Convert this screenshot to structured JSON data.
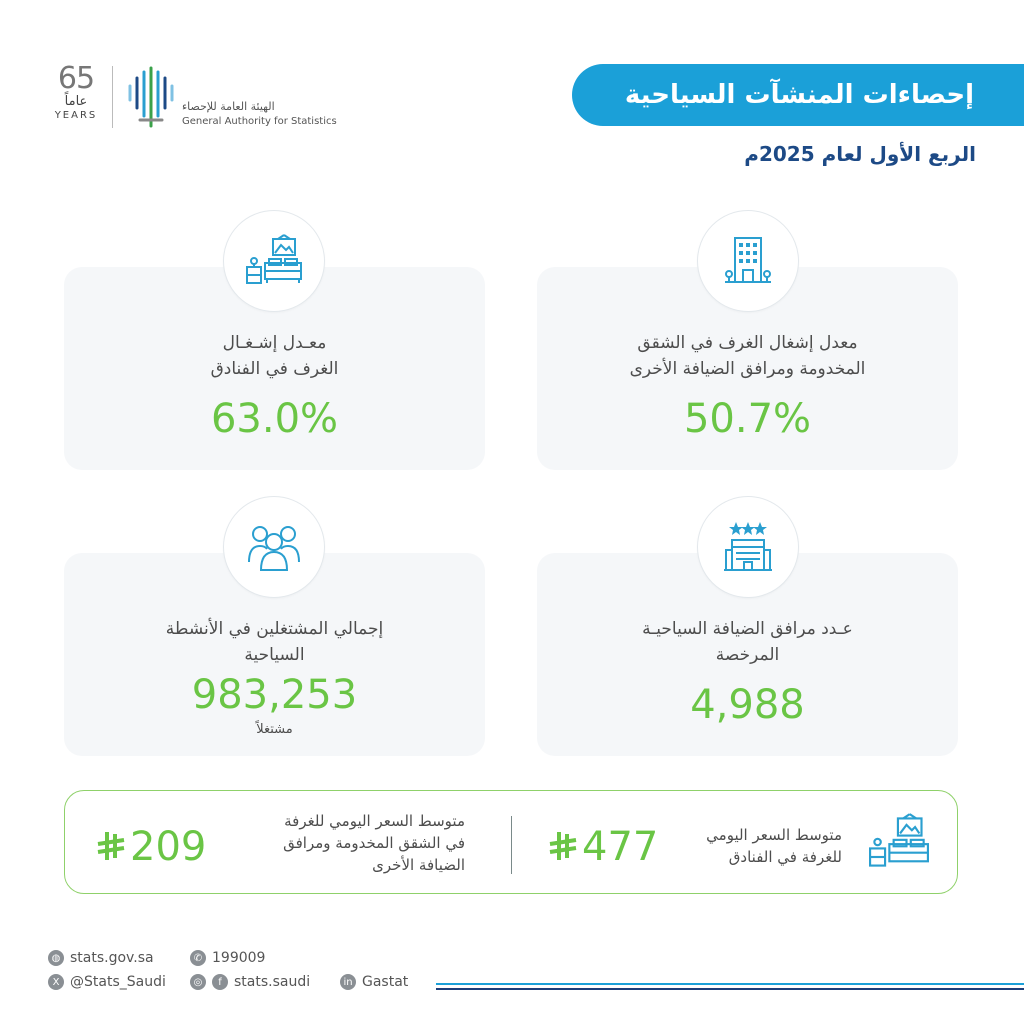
{
  "logo": {
    "anniversary_number": "65",
    "anniversary_arabic": "عاماً",
    "anniversary_english": "YEARS",
    "org_name_ar": "الهيئة العامة للإحصاء",
    "org_name_en": "General Authority for Statistics"
  },
  "header": {
    "title": "إحصاءات المنشآت السياحية",
    "subtitle": "الربع الأول لعام 2025م"
  },
  "cards": [
    {
      "label_line1": "معدل إشغال الغرف في الشقق",
      "label_line2": "المخدومة ومرافق الضيافة الأخرى",
      "value": "50.7%",
      "icon": "building-icon"
    },
    {
      "label_line1": "معـدل إشـغـال",
      "label_line2": "الغرف في الفنادق",
      "value": "63.0%",
      "icon": "hotel-room-icon"
    },
    {
      "label_line1": "عـدد مرافق الضيافة السياحيـة",
      "label_line2": "المرخصة",
      "value": "4,988",
      "icon": "hotel-stars-icon"
    },
    {
      "label_line1": "إجمالي المشتغلين في الأنشطة",
      "label_line2": "السياحية",
      "value": "983,253",
      "unit": "مشتغلاً",
      "icon": "people-icon"
    }
  ],
  "prices": {
    "hotel_label_line1": "متوسط السعر اليومي",
    "hotel_label_line2": "للغرفة في الفنادق",
    "hotel_value": "477",
    "apartment_label_line1": "متوسط السعر اليومي للغرفة",
    "apartment_label_line2": "في الشقق المخدومة ومرافق",
    "apartment_label_line3": "الضيافة الأخرى",
    "apartment_value": "209",
    "currency_icon": "riyal-icon"
  },
  "footer": {
    "website": "stats.gov.sa",
    "phone": "199009",
    "x_handle": "@Stats_Saudi",
    "social_handle": "stats.saudi",
    "linkedin": "Gastat"
  },
  "colors": {
    "title_bg": "#1ba0d8",
    "subtitle": "#1d4a86",
    "value_green": "#6ac545",
    "icon_blue": "#2a9fd0"
  }
}
